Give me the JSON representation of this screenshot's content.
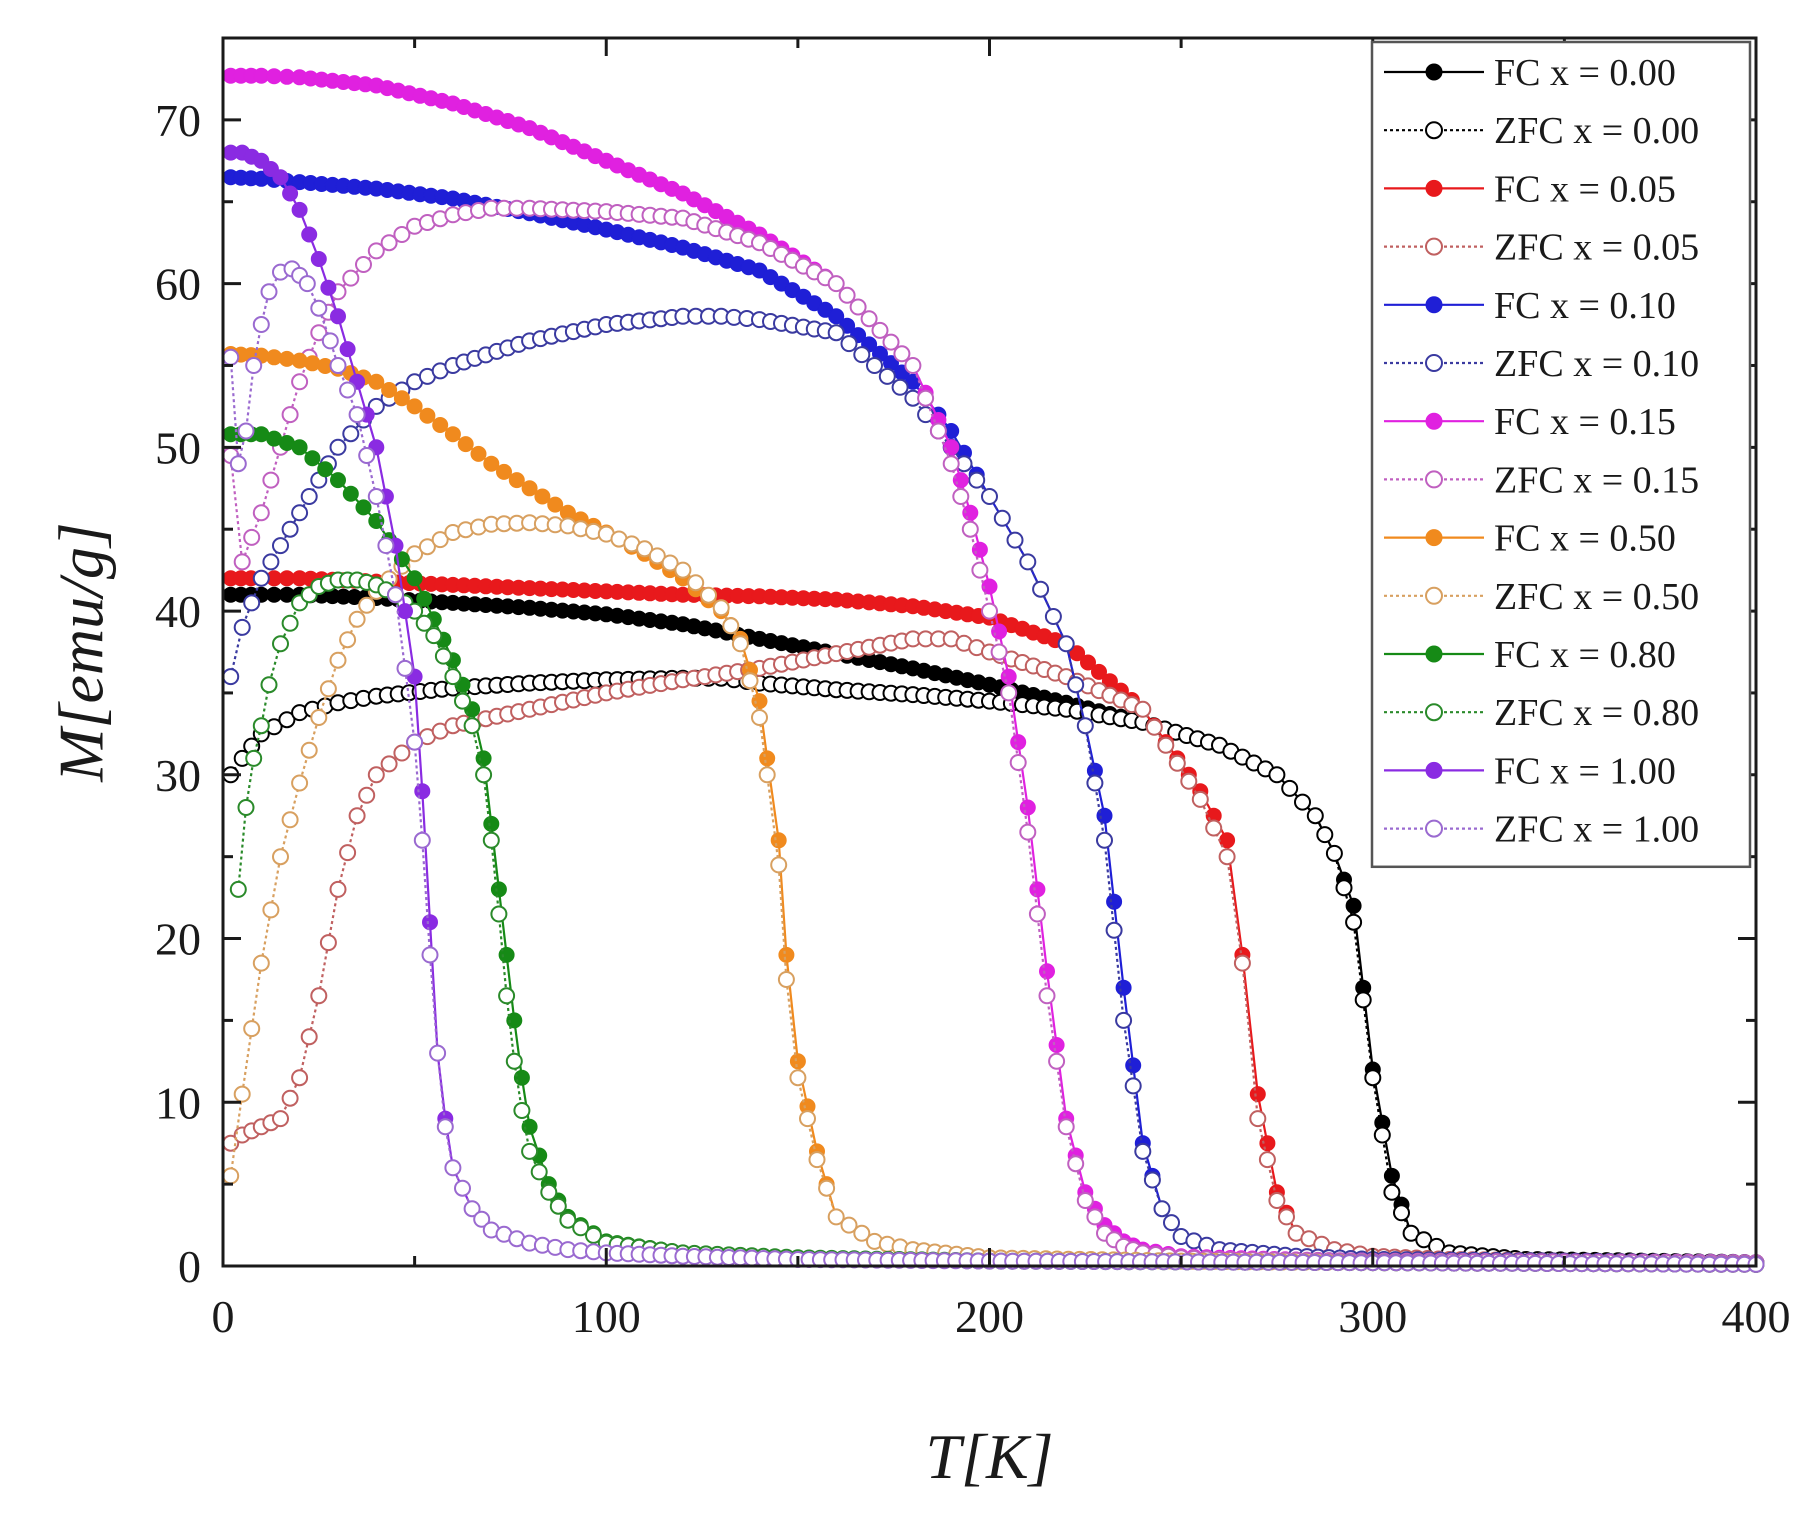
{
  "chart_data": {
    "type": "scatter",
    "title": "",
    "xlabel": "T[K]",
    "ylabel": "M[emu/g]",
    "xlim": [
      0,
      400
    ],
    "ylim": [
      0,
      75
    ],
    "xticks": [
      0,
      100,
      200,
      300,
      400
    ],
    "yticks": [
      0,
      10,
      20,
      30,
      40,
      50,
      60,
      70
    ],
    "grid": false,
    "legend_position": "top-right",
    "series": [
      {
        "name": "FC x = 0.00",
        "color": "#000000",
        "marker": "filled",
        "line": "solid",
        "x": [
          2,
          10,
          20,
          40,
          60,
          80,
          100,
          120,
          140,
          160,
          180,
          200,
          220,
          240,
          260,
          275,
          285,
          290,
          295,
          300,
          305,
          310,
          320,
          340,
          370,
          400
        ],
        "y": [
          41,
          41,
          41,
          40.8,
          40.5,
          40.2,
          39.8,
          39.2,
          38.3,
          37.4,
          36.5,
          35.5,
          34.4,
          33.2,
          31.8,
          30,
          27.5,
          25.2,
          22,
          12,
          5.5,
          2,
          0.8,
          0.4,
          0.3,
          0.2
        ]
      },
      {
        "name": "ZFC x = 0.00",
        "color": "#000000",
        "marker": "open",
        "line": "dotted",
        "x": [
          2,
          5,
          10,
          20,
          30,
          40,
          60,
          80,
          100,
          120,
          130,
          140,
          160,
          180,
          200,
          220,
          240,
          260,
          275,
          285,
          290,
          295,
          300,
          305,
          310,
          320,
          340,
          370,
          400
        ],
        "y": [
          30,
          31,
          32.5,
          33.8,
          34.4,
          34.8,
          35.3,
          35.6,
          35.8,
          35.9,
          35.9,
          35.6,
          35.2,
          34.9,
          34.5,
          34,
          33.2,
          31.8,
          30,
          27.5,
          25.2,
          21,
          11.5,
          4.5,
          2,
          0.8,
          0.4,
          0.3,
          0.2
        ]
      },
      {
        "name": "FC x = 0.05",
        "color": "#e8191c",
        "marker": "filled",
        "line": "solid",
        "x": [
          2,
          10,
          20,
          40,
          60,
          80,
          100,
          120,
          140,
          160,
          180,
          200,
          220,
          240,
          255,
          262,
          266,
          270,
          275,
          280,
          290,
          300,
          320,
          350,
          400
        ],
        "y": [
          42,
          42,
          42,
          41.8,
          41.6,
          41.4,
          41.2,
          41,
          40.9,
          40.7,
          40.3,
          39.6,
          38,
          34,
          29,
          26,
          19,
          10.5,
          4.5,
          2,
          1,
          0.6,
          0.4,
          0.3,
          0.2
        ]
      },
      {
        "name": "ZFC x = 0.05",
        "color": "#c06060",
        "marker": "open",
        "line": "dotted",
        "x": [
          2,
          5,
          10,
          15,
          20,
          25,
          30,
          35,
          40,
          50,
          60,
          80,
          100,
          120,
          140,
          160,
          180,
          190,
          200,
          220,
          240,
          255,
          262,
          266,
          270,
          275,
          280,
          290,
          300,
          320,
          350,
          400
        ],
        "y": [
          7.5,
          8,
          8.5,
          9,
          11.5,
          16.5,
          23,
          27.5,
          30,
          32,
          33,
          34,
          35,
          35.8,
          36.5,
          37.4,
          38.3,
          38.3,
          37.5,
          36,
          34,
          28.5,
          25,
          18.5,
          9,
          4,
          2,
          1,
          0.6,
          0.4,
          0.3,
          0.2
        ]
      },
      {
        "name": "FC x = 0.10",
        "color": "#1f1fd6",
        "marker": "filled",
        "line": "solid",
        "x": [
          2,
          10,
          20,
          40,
          60,
          80,
          100,
          120,
          140,
          160,
          180,
          190,
          200,
          210,
          220,
          225,
          230,
          235,
          240,
          245,
          250,
          260,
          280,
          300,
          350,
          400
        ],
        "y": [
          66.5,
          66.4,
          66.2,
          65.8,
          65.2,
          64.3,
          63.3,
          62.2,
          60.8,
          58,
          54,
          51,
          47,
          43,
          38,
          33,
          27.5,
          17,
          7.5,
          3.5,
          1.8,
          1,
          0.6,
          0.4,
          0.3,
          0.2
        ]
      },
      {
        "name": "ZFC x = 0.10",
        "color": "#3a3aa0",
        "marker": "open",
        "line": "dotted",
        "x": [
          2,
          5,
          10,
          15,
          20,
          25,
          30,
          40,
          50,
          60,
          80,
          100,
          120,
          130,
          140,
          160,
          170,
          180,
          190,
          200,
          210,
          220,
          225,
          230,
          235,
          240,
          245,
          250,
          260,
          280,
          300,
          350,
          400
        ],
        "y": [
          36,
          39,
          42,
          44,
          46,
          48,
          50,
          52.5,
          54,
          55,
          56.5,
          57.5,
          58,
          58,
          57.8,
          57,
          55,
          53,
          50,
          47,
          43,
          38,
          33,
          26,
          15,
          7,
          3.5,
          1.8,
          1,
          0.6,
          0.4,
          0.3,
          0.2
        ]
      },
      {
        "name": "FC x = 0.15",
        "color": "#e021e0",
        "marker": "filled",
        "line": "solid",
        "x": [
          2,
          10,
          20,
          40,
          60,
          80,
          100,
          120,
          140,
          160,
          180,
          190,
          195,
          200,
          205,
          210,
          215,
          220,
          225,
          230,
          235,
          240,
          250,
          260,
          280,
          300,
          350,
          400
        ],
        "y": [
          72.7,
          72.7,
          72.6,
          72.1,
          71,
          69.5,
          67.5,
          65.5,
          63,
          60,
          55,
          50,
          46,
          41.5,
          36,
          28,
          18,
          9,
          4.5,
          2.5,
          1.5,
          1,
          0.6,
          0.5,
          0.4,
          0.3,
          0.25,
          0.2
        ]
      },
      {
        "name": "ZFC x = 0.15",
        "color": "#c060c0",
        "marker": "open",
        "line": "dotted",
        "x": [
          2,
          5,
          10,
          15,
          20,
          25,
          30,
          40,
          50,
          60,
          70,
          80,
          100,
          120,
          140,
          160,
          180,
          190,
          195,
          200,
          205,
          210,
          215,
          220,
          225,
          230,
          235,
          240,
          250,
          260,
          280,
          300,
          350,
          400
        ],
        "y": [
          49.5,
          43,
          46,
          50,
          54,
          57,
          59.5,
          62,
          63.5,
          64.2,
          64.6,
          64.6,
          64.4,
          64,
          62.5,
          60,
          55,
          49,
          45,
          40,
          35,
          26.5,
          16.5,
          8.5,
          4,
          2,
          1.2,
          0.8,
          0.5,
          0.4,
          0.35,
          0.3,
          0.25,
          0.2
        ]
      },
      {
        "name": "FC x = 0.50",
        "color": "#f08a1e",
        "marker": "filled",
        "line": "solid",
        "x": [
          2,
          10,
          20,
          30,
          40,
          50,
          60,
          70,
          80,
          90,
          100,
          110,
          120,
          130,
          135,
          140,
          142,
          145,
          147,
          150,
          155,
          160,
          170,
          180,
          200,
          250,
          300,
          400
        ],
        "y": [
          55.7,
          55.6,
          55.3,
          54.8,
          54,
          52.5,
          50.8,
          49,
          47.5,
          46,
          44.8,
          43.5,
          42,
          40,
          38.3,
          34.5,
          31,
          26,
          19,
          12.5,
          7,
          3,
          1.5,
          1,
          0.5,
          0.3,
          0.2,
          0.1
        ]
      },
      {
        "name": "ZFC x = 0.50",
        "color": "#d8a060",
        "marker": "open",
        "line": "dotted",
        "x": [
          2,
          5,
          10,
          15,
          20,
          25,
          30,
          35,
          40,
          50,
          60,
          70,
          80,
          90,
          100,
          110,
          120,
          130,
          135,
          140,
          142,
          145,
          147,
          150,
          155,
          160,
          170,
          180,
          200,
          250,
          300,
          400
        ],
        "y": [
          5.5,
          10.5,
          18.5,
          25,
          29.5,
          33.5,
          37,
          39.5,
          41.2,
          43.5,
          44.8,
          45.3,
          45.4,
          45.2,
          44.7,
          43.8,
          42.5,
          40.2,
          38,
          33.5,
          30,
          24.5,
          17.5,
          11.5,
          6.5,
          3,
          1.5,
          1,
          0.5,
          0.3,
          0.2,
          0.1
        ]
      },
      {
        "name": "FC x = 0.80",
        "color": "#168a16",
        "marker": "filled",
        "line": "solid",
        "x": [
          2,
          10,
          20,
          30,
          40,
          50,
          55,
          60,
          65,
          68,
          70,
          72,
          74,
          76,
          78,
          80,
          85,
          90,
          100,
          120,
          150,
          200,
          300,
          400
        ],
        "y": [
          50.8,
          50.8,
          50,
          48,
          45.5,
          42,
          39.5,
          37,
          34,
          31,
          27,
          23,
          19,
          15,
          11.5,
          8.5,
          5,
          3,
          1.5,
          0.8,
          0.5,
          0.3,
          0.2,
          0.1
        ]
      },
      {
        "name": "ZFC x = 0.80",
        "color": "#2a8a2a",
        "marker": "open",
        "line": "dotted",
        "x": [
          4,
          6,
          8,
          10,
          12,
          15,
          20,
          25,
          30,
          35,
          40,
          45,
          50,
          55,
          60,
          65,
          68,
          70,
          72,
          74,
          76,
          78,
          80,
          85,
          90,
          100,
          120,
          150,
          200,
          300,
          400
        ],
        "y": [
          23,
          28,
          31,
          33,
          35.5,
          38,
          40.5,
          41.5,
          41.9,
          41.9,
          41.6,
          41,
          40,
          38.5,
          36,
          33,
          30,
          26,
          21.5,
          16.5,
          12.5,
          9.5,
          7,
          4.5,
          2.8,
          1.4,
          0.8,
          0.5,
          0.3,
          0.2,
          0.1
        ]
      },
      {
        "name": "FC x = 1.00",
        "color": "#8a2be2",
        "marker": "filled",
        "line": "solid",
        "x": [
          2,
          5,
          10,
          15,
          20,
          25,
          30,
          35,
          40,
          45,
          50,
          52,
          54,
          56,
          58,
          60,
          65,
          70,
          80,
          90,
          100,
          120,
          150,
          200,
          300,
          400
        ],
        "y": [
          68,
          68,
          67.5,
          66.5,
          64.5,
          61.5,
          58,
          54,
          50,
          44,
          36,
          29,
          21,
          13,
          9,
          6,
          3.5,
          2.2,
          1.4,
          1,
          0.8,
          0.6,
          0.4,
          0.3,
          0.2,
          0.1
        ]
      },
      {
        "name": "ZFC x = 1.00",
        "color": "#9a6ad0",
        "marker": "open",
        "line": "dotted",
        "x": [
          2,
          4,
          6,
          8,
          10,
          12,
          15,
          18,
          20,
          22,
          25,
          28,
          30,
          35,
          40,
          45,
          50,
          52,
          54,
          56,
          58,
          60,
          65,
          70,
          80,
          90,
          100,
          120,
          150,
          200,
          300,
          400
        ],
        "y": [
          55.5,
          49,
          51,
          55,
          57.5,
          59.5,
          60.7,
          60.9,
          60.5,
          60,
          58.5,
          56.5,
          55,
          52,
          47,
          41,
          32,
          26,
          19,
          13,
          8.5,
          6,
          3.5,
          2.2,
          1.4,
          1,
          0.8,
          0.6,
          0.4,
          0.3,
          0.2,
          0.1
        ]
      }
    ]
  }
}
